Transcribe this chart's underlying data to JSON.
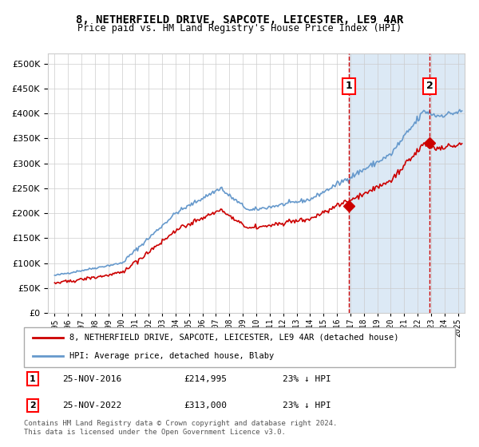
{
  "title": "8, NETHERFIELD DRIVE, SAPCOTE, LEICESTER, LE9 4AR",
  "subtitle": "Price paid vs. HM Land Registry's House Price Index (HPI)",
  "legend_property": "8, NETHERFIELD DRIVE, SAPCOTE, LEICESTER, LE9 4AR (detached house)",
  "legend_hpi": "HPI: Average price, detached house, Blaby",
  "annotation1_date": "25-NOV-2016",
  "annotation1_price": "£214,995",
  "annotation1_hpi": "23% ↓ HPI",
  "annotation2_date": "25-NOV-2022",
  "annotation2_price": "£313,000",
  "annotation2_hpi": "23% ↓ HPI",
  "footer": "Contains HM Land Registry data © Crown copyright and database right 2024.\nThis data is licensed under the Open Government Licence v3.0.",
  "property_color": "#cc0000",
  "hpi_color": "#6699cc",
  "background_color": "#dce9f5",
  "vline_color": "#cc0000",
  "marker1_x": 2016.9,
  "marker1_y": 214995,
  "marker2_x": 2022.9,
  "marker2_y": 313000,
  "ylim": [
    0,
    520000
  ],
  "xlim": [
    1994.5,
    2025.5
  ],
  "yticks": [
    0,
    50000,
    100000,
    150000,
    200000,
    250000,
    300000,
    350000,
    400000,
    450000,
    500000
  ],
  "xticks": [
    1995,
    1996,
    1997,
    1998,
    1999,
    2000,
    2001,
    2002,
    2003,
    2004,
    2005,
    2006,
    2007,
    2008,
    2009,
    2010,
    2011,
    2012,
    2013,
    2014,
    2015,
    2016,
    2017,
    2018,
    2019,
    2020,
    2021,
    2022,
    2023,
    2024,
    2025
  ]
}
